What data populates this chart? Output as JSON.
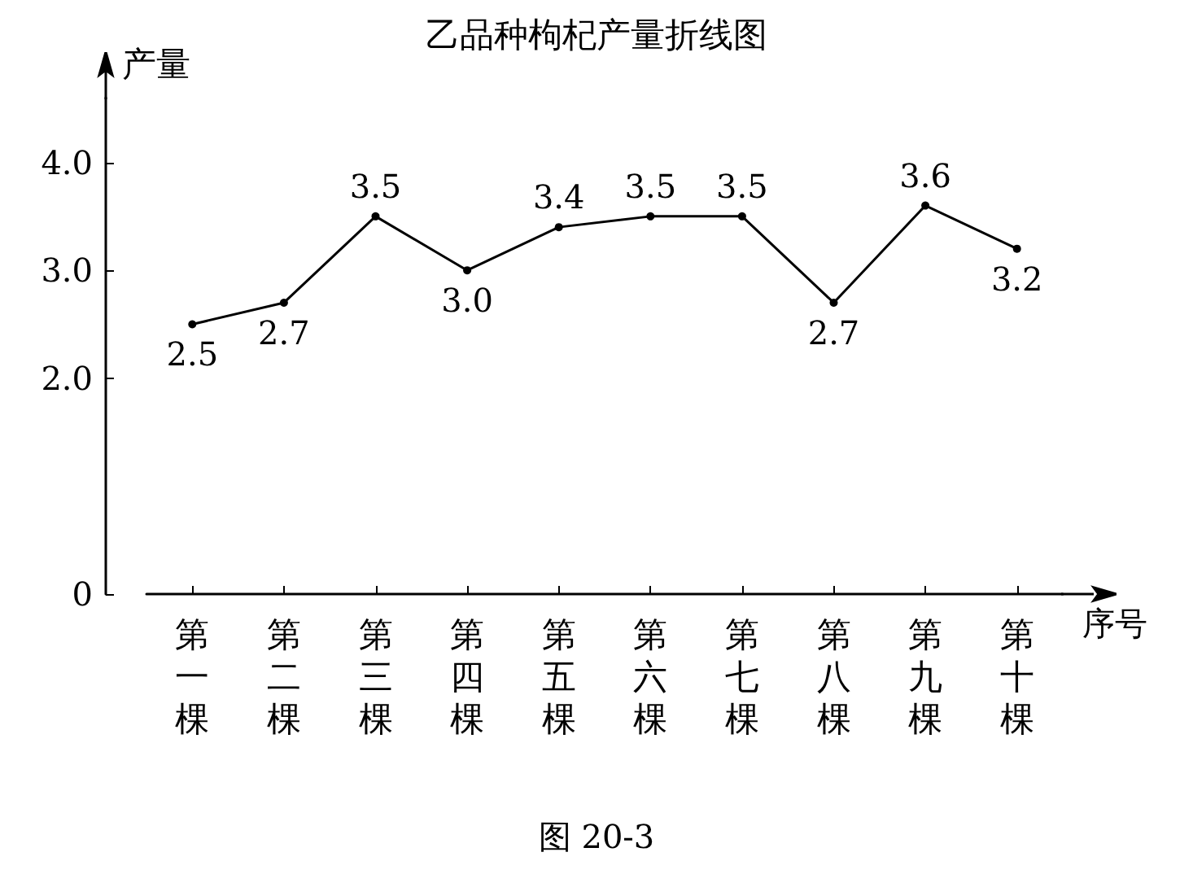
{
  "chart_data": {
    "type": "line",
    "title": "乙品种枸杞产量折线图",
    "xlabel": "序号",
    "ylabel": "产量",
    "categories": [
      "第一棵",
      "第二棵",
      "第三棵",
      "第四棵",
      "第五棵",
      "第六棵",
      "第七棵",
      "第八棵",
      "第九棵",
      "第十棵"
    ],
    "values": [
      2.5,
      2.7,
      3.5,
      3.0,
      3.4,
      3.5,
      3.5,
      2.7,
      3.6,
      3.2
    ],
    "value_labels": [
      "2.5",
      "2.7",
      "3.5",
      "3.0",
      "3.4",
      "3.5",
      "3.5",
      "2.7",
      "3.6",
      "3.2"
    ],
    "color": "#000000",
    "marker": "circle",
    "grid": false,
    "ylim": [
      0,
      4.6
    ],
    "yticks": [
      0,
      {
        "value": 2,
        "label": "2.0"
      },
      {
        "value": 3,
        "label": "3.0"
      },
      {
        "value": 4,
        "label": "4.0"
      }
    ],
    "annotations": [
      "图 20-3"
    ]
  }
}
